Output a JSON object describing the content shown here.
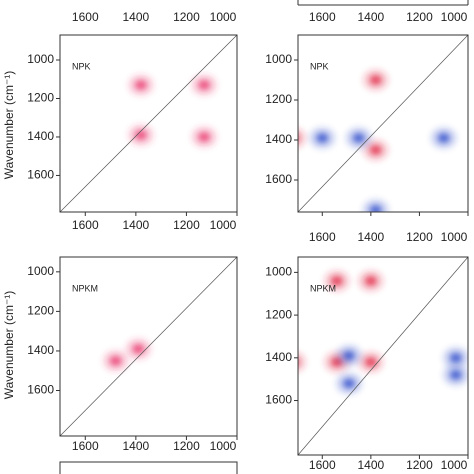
{
  "chart_data": [
    {
      "type": "contour",
      "label": "NPK",
      "ylabel": "Wavenumber (cm⁻¹)",
      "xlim": [
        1700,
        1000
      ],
      "xticks": [
        1600,
        1400,
        1200,
        1000
      ],
      "xtick_sides": [
        "top",
        "bottom"
      ],
      "ylim": [
        870,
        1790
      ],
      "yticks": [
        1000,
        1200,
        1400,
        1600
      ],
      "series": [
        {
          "color": "#e8336b",
          "x": [
            1380,
            1130,
            1380,
            1130
          ],
          "values": [
            1390,
            1130,
            1130,
            1400
          ]
        }
      ]
    },
    {
      "type": "contour",
      "label": "NPK",
      "xlim": [
        1700,
        1000
      ],
      "xticks": [
        1600,
        1400,
        1200,
        1000
      ],
      "xtick_sides": [
        "top",
        "bottom"
      ],
      "ylim": [
        875,
        1760
      ],
      "yticks": [
        1000,
        1200,
        1400,
        1600
      ],
      "series": [
        {
          "color": "#e02040",
          "x": [
            1380,
            1380,
            1720
          ],
          "values": [
            1100,
            1450,
            1390
          ]
        },
        {
          "color": "#2a45c8",
          "x": [
            1450,
            1100,
            1380,
            1600
          ],
          "values": [
            1390,
            1390,
            1750,
            1390
          ]
        }
      ]
    },
    {
      "type": "contour",
      "label": "NPKM",
      "ylabel": "Wavenumber (cm⁻¹)",
      "xlim": [
        1700,
        1000
      ],
      "xticks": [
        1600,
        1400,
        1200,
        1000
      ],
      "xtick_sides": [
        "bottom"
      ],
      "ylim": [
        925,
        1830
      ],
      "yticks": [
        1000,
        1200,
        1400,
        1600
      ],
      "series": [
        {
          "color": "#e8336b",
          "x": [
            1390,
            1480
          ],
          "values": [
            1390,
            1450
          ]
        }
      ]
    },
    {
      "type": "contour",
      "label": "NPKM",
      "xlim": [
        1700,
        1000
      ],
      "xticks": [
        1600,
        1400,
        1200,
        1000
      ],
      "xtick_sides": [
        "bottom"
      ],
      "ylim": [
        928,
        1855
      ],
      "yticks": [
        1000,
        1200,
        1400,
        1600
      ],
      "series": [
        {
          "color": "#e02040",
          "x": [
            1540,
            1400,
            1540,
            1400,
            1720
          ],
          "values": [
            1420,
            1420,
            1040,
            1040,
            1420
          ]
        },
        {
          "color": "#2a45c8",
          "x": [
            1490,
            1490,
            1050,
            1050
          ],
          "values": [
            1390,
            1520,
            1400,
            1480
          ]
        }
      ]
    }
  ]
}
